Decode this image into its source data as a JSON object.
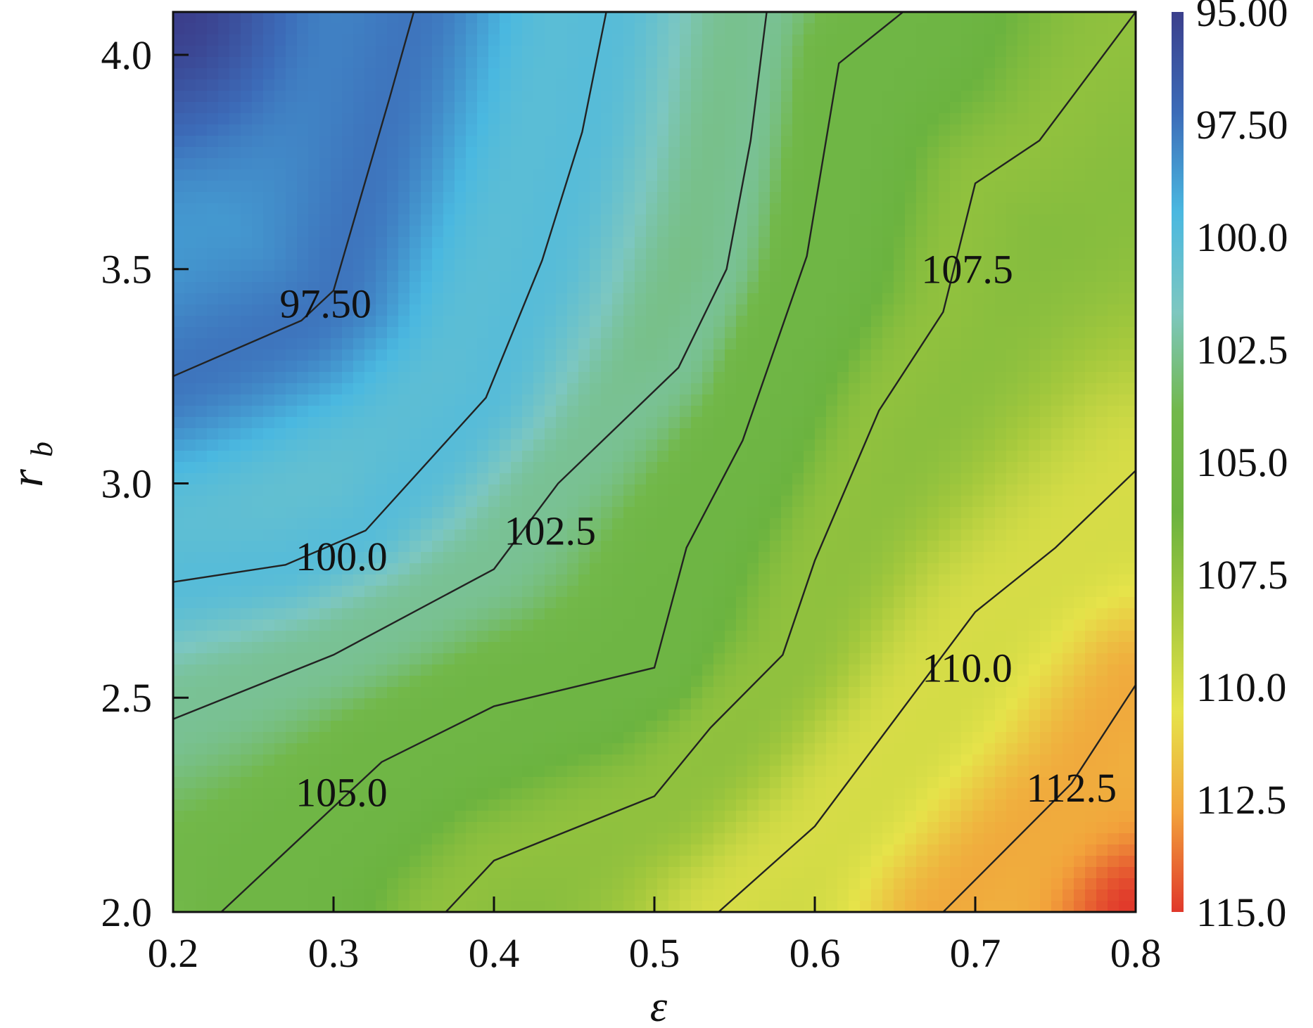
{
  "chart_data": {
    "type": "heatmap",
    "subtype": "filled-contour",
    "xlabel": "ε",
    "ylabel": "r",
    "ylabel_subscript": "b",
    "xlim": [
      0.2,
      0.8
    ],
    "ylim": [
      2.0,
      4.1
    ],
    "x_ticks": [
      "0.2",
      "0.3",
      "0.4",
      "0.5",
      "0.6",
      "0.7",
      "0.8"
    ],
    "y_ticks": [
      "2.0",
      "2.5",
      "3.0",
      "3.5",
      "4.0"
    ],
    "x_tick_values": [
      0.2,
      0.3,
      0.4,
      0.5,
      0.6,
      0.7,
      0.8
    ],
    "y_tick_values": [
      2.0,
      2.5,
      3.0,
      3.5,
      4.0
    ],
    "colorbar": {
      "range": [
        95.0,
        115.0
      ],
      "tick_labels": [
        "95.00",
        "97.50",
        "100.0",
        "102.5",
        "105.0",
        "107.5",
        "110.0",
        "112.5",
        "115.0"
      ],
      "tick_values": [
        95.0,
        97.5,
        100.0,
        102.5,
        105.0,
        107.5,
        110.0,
        112.5,
        115.0
      ],
      "colors": [
        "#3b3f8c",
        "#3c6bb8",
        "#4ab8e0",
        "#7dc7c0",
        "#72b84a",
        "#6bb33f",
        "#a6c93d",
        "#e6e34a",
        "#f2a23b",
        "#e0382b"
      ]
    },
    "contours": [
      {
        "level": 97.5,
        "label": "97.50",
        "points": [
          [
            0.2,
            3.25
          ],
          [
            0.28,
            3.38
          ],
          [
            0.3,
            3.45
          ],
          [
            0.335,
            3.9
          ],
          [
            0.35,
            4.1
          ]
        ]
      },
      {
        "level": 100.0,
        "label": "100.0",
        "points": [
          [
            0.2,
            2.77
          ],
          [
            0.27,
            2.81
          ],
          [
            0.32,
            2.89
          ],
          [
            0.395,
            3.2
          ],
          [
            0.43,
            3.52
          ],
          [
            0.455,
            3.82
          ],
          [
            0.47,
            4.1
          ]
        ]
      },
      {
        "level": 102.5,
        "label": "102.5",
        "points": [
          [
            0.2,
            2.45
          ],
          [
            0.3,
            2.6
          ],
          [
            0.4,
            2.8
          ],
          [
            0.44,
            3.0
          ],
          [
            0.515,
            3.27
          ],
          [
            0.545,
            3.5
          ],
          [
            0.56,
            3.8
          ],
          [
            0.57,
            4.1
          ]
        ]
      },
      {
        "level": 105.0,
        "label": "105.0",
        "points": [
          [
            0.23,
            2.0
          ],
          [
            0.33,
            2.35
          ],
          [
            0.4,
            2.48
          ],
          [
            0.5,
            2.57
          ],
          [
            0.52,
            2.85
          ],
          [
            0.555,
            3.1
          ],
          [
            0.595,
            3.53
          ],
          [
            0.615,
            3.98
          ],
          [
            0.655,
            4.1
          ]
        ]
      },
      {
        "level": 107.5,
        "label": "107.5",
        "points": [
          [
            0.37,
            2.0
          ],
          [
            0.4,
            2.12
          ],
          [
            0.5,
            2.27
          ],
          [
            0.535,
            2.43
          ],
          [
            0.58,
            2.6
          ],
          [
            0.6,
            2.82
          ],
          [
            0.64,
            3.17
          ],
          [
            0.68,
            3.4
          ],
          [
            0.7,
            3.7
          ],
          [
            0.74,
            3.8
          ],
          [
            0.8,
            4.1
          ]
        ]
      },
      {
        "level": 110.0,
        "label": "110.0",
        "points": [
          [
            0.54,
            2.0
          ],
          [
            0.6,
            2.2
          ],
          [
            0.66,
            2.5
          ],
          [
            0.7,
            2.7
          ],
          [
            0.75,
            2.85
          ],
          [
            0.8,
            3.03
          ]
        ]
      },
      {
        "level": 112.5,
        "label": "112.5",
        "points": [
          [
            0.68,
            2.0
          ],
          [
            0.72,
            2.15
          ],
          [
            0.76,
            2.3
          ],
          [
            0.8,
            2.53
          ]
        ]
      }
    ],
    "contour_labels": [
      {
        "text": "97.50",
        "x": 0.295,
        "y": 3.42
      },
      {
        "text": "100.0",
        "x": 0.305,
        "y": 2.83
      },
      {
        "text": "102.5",
        "x": 0.435,
        "y": 2.89
      },
      {
        "text": "105.0",
        "x": 0.305,
        "y": 2.28
      },
      {
        "text": "107.5",
        "x": 0.695,
        "y": 3.5
      },
      {
        "text": "110.0",
        "x": 0.695,
        "y": 2.57
      },
      {
        "text": "112.5",
        "x": 0.76,
        "y": 2.29
      }
    ],
    "grid": false,
    "legend": "colorbar-right"
  }
}
